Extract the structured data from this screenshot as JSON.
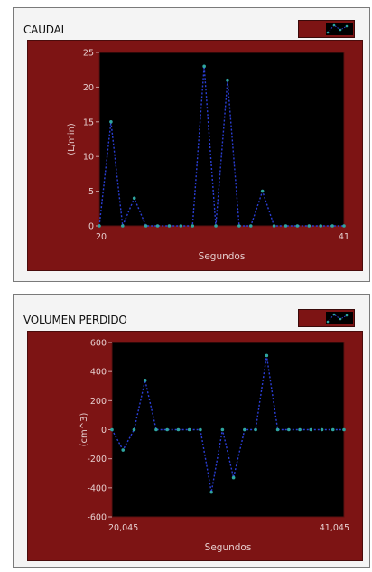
{
  "charts": [
    {
      "title": "CAUDAL",
      "ylabel": "(L/min)",
      "xlabel": "Segundos",
      "x_start_label": "20",
      "x_end_label": "41",
      "y_ticks": [
        "0",
        "5",
        "10",
        "15",
        "20",
        "25"
      ]
    },
    {
      "title": "VOLUMEN PERDIDO",
      "ylabel": "(cm^3)",
      "xlabel": "Segundos",
      "x_start_label": "20,045",
      "x_end_label": "41,045",
      "y_ticks": [
        "-600",
        "-400",
        "-200",
        "0",
        "200",
        "400",
        "600"
      ]
    }
  ],
  "chart_data": [
    {
      "type": "line",
      "title": "CAUDAL",
      "xlabel": "Segundos",
      "ylabel": "(L/min)",
      "xlim": [
        20,
        41
      ],
      "ylim": [
        0,
        25
      ],
      "grid": false,
      "x": [
        20,
        21,
        22,
        23,
        24,
        25,
        26,
        27,
        28,
        29,
        30,
        31,
        32,
        33,
        34,
        35,
        36,
        37,
        38,
        39,
        40,
        41
      ],
      "series": [
        {
          "values": [
            0,
            15,
            0,
            4,
            0,
            0,
            0,
            0,
            0,
            23,
            0,
            21,
            0,
            0,
            5,
            0,
            0,
            0,
            0,
            0,
            0,
            0
          ]
        }
      ],
      "colors": {
        "line": "#2b3fd6",
        "marker": "#2fa5a0",
        "plot_bg": "#000000",
        "frame": "#7d1414"
      }
    },
    {
      "type": "line",
      "title": "VOLUMEN PERDIDO",
      "xlabel": "Segundos",
      "ylabel": "(cm^3)",
      "xlim": [
        20.045,
        41.045
      ],
      "ylim": [
        -600,
        600
      ],
      "grid": false,
      "x": [
        20.045,
        21.045,
        22.045,
        23.045,
        24.045,
        25.045,
        26.045,
        27.045,
        28.045,
        29.045,
        30.045,
        31.045,
        32.045,
        33.045,
        34.045,
        35.045,
        36.045,
        37.045,
        38.045,
        39.045,
        40.045,
        41.045
      ],
      "series": [
        {
          "values": [
            0,
            -140,
            0,
            340,
            0,
            0,
            0,
            0,
            0,
            -430,
            0,
            -330,
            0,
            0,
            510,
            0,
            0,
            0,
            0,
            0,
            0,
            0
          ]
        }
      ],
      "colors": {
        "line": "#2b3fd6",
        "marker": "#2fa5a0",
        "plot_bg": "#000000",
        "frame": "#7d1414"
      }
    }
  ]
}
